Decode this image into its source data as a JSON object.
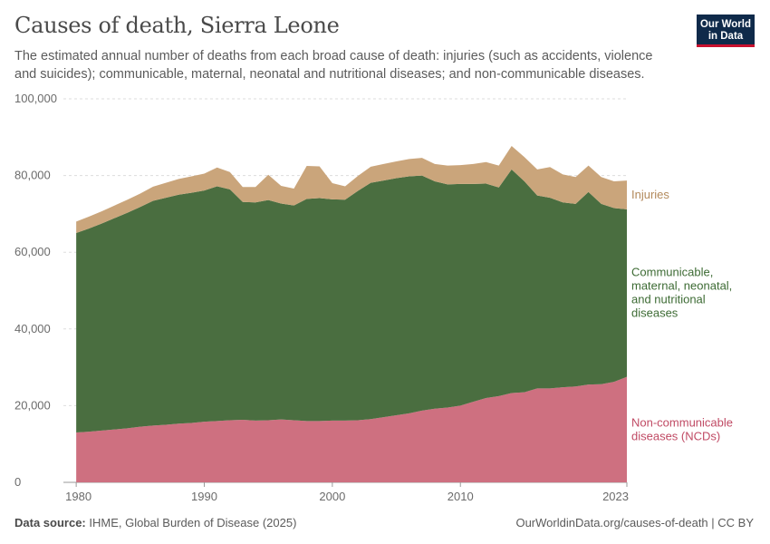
{
  "header": {
    "title": "Causes of death, Sierra Leone",
    "subtitle": "The estimated annual number of deaths from each broad cause of death: injuries (such as accidents, violence and suicides); communicable, maternal, neonatal and nutritional diseases; and non-communicable diseases."
  },
  "logo": {
    "line1": "Our World",
    "line2": "in Data"
  },
  "footer": {
    "source_label": "Data source:",
    "source_text": "IHME, Global Burden of Disease (2025)",
    "url": "OurWorldinData.org/causes-of-death | CC BY"
  },
  "chart_data": {
    "type": "area",
    "stacked": true,
    "title": "Causes of death, Sierra Leone",
    "x": [
      1980,
      1981,
      1982,
      1983,
      1984,
      1985,
      1986,
      1987,
      1988,
      1989,
      1990,
      1991,
      1992,
      1993,
      1994,
      1995,
      1996,
      1997,
      1998,
      1999,
      2000,
      2001,
      2002,
      2003,
      2004,
      2005,
      2006,
      2007,
      2008,
      2009,
      2010,
      2011,
      2012,
      2013,
      2014,
      2015,
      2016,
      2017,
      2018,
      2019,
      2020,
      2021,
      2022,
      2023
    ],
    "xlim": [
      1979,
      2023
    ],
    "ylim": [
      0,
      100000
    ],
    "x_ticks": [
      1980,
      1990,
      2000,
      2010,
      2023
    ],
    "x_tick_labels": [
      "1980",
      "1990",
      "2000",
      "2010",
      "2023"
    ],
    "y_ticks": [
      0,
      20000,
      40000,
      60000,
      80000,
      100000
    ],
    "y_tick_labels": [
      "0",
      "20,000",
      "40,000",
      "60,000",
      "80,000",
      "100,000"
    ],
    "grid": "horizontal-dashed",
    "series": [
      {
        "name": "Non-communicable diseases (NCDs)",
        "label_lines": [
          "Non-communicable",
          "diseases (NCDs)"
        ],
        "color": "#ce7080",
        "label_color": "#c04a64",
        "values": [
          13000,
          13200,
          13500,
          13800,
          14100,
          14500,
          14800,
          15000,
          15300,
          15500,
          15800,
          16000,
          16200,
          16300,
          16100,
          16200,
          16400,
          16200,
          16000,
          16000,
          16100,
          16100,
          16200,
          16500,
          17000,
          17500,
          18000,
          18700,
          19200,
          19500,
          20000,
          21000,
          22000,
          22500,
          23300,
          23500,
          24500,
          24500,
          24800,
          25000,
          25500,
          25600,
          26200,
          27500
        ]
      },
      {
        "name": "Communicable, maternal, neonatal, and nutritional diseases",
        "label_lines": [
          "Communicable,",
          "maternal, neonatal,",
          "and nutritional",
          "diseases"
        ],
        "color": "#4a6e40",
        "label_color": "#3d6b34",
        "values": [
          52000,
          53000,
          54000,
          55100,
          56200,
          57300,
          58600,
          59200,
          59700,
          60000,
          60300,
          61200,
          60200,
          56800,
          56900,
          57400,
          56300,
          56000,
          57900,
          58100,
          57700,
          57600,
          59800,
          61600,
          61700,
          61800,
          61800,
          61300,
          59300,
          58200,
          57800,
          56800,
          55900,
          54400,
          58300,
          55000,
          50300,
          49700,
          48200,
          47600,
          50200,
          47000,
          45300,
          43700
        ]
      },
      {
        "name": "Injuries",
        "label_lines": [
          "Injuries"
        ],
        "color": "#caa57b",
        "label_color": "#b38a5c",
        "values": [
          3000,
          3100,
          3200,
          3300,
          3400,
          3500,
          3700,
          3900,
          4100,
          4300,
          4400,
          4900,
          4500,
          3900,
          4000,
          6600,
          4600,
          4400,
          8600,
          8300,
          4200,
          3500,
          3900,
          4200,
          4300,
          4400,
          4500,
          4600,
          4500,
          4900,
          4900,
          5200,
          5600,
          5700,
          6100,
          6300,
          6800,
          8000,
          7300,
          7000,
          6900,
          7000,
          7000,
          7500
        ]
      }
    ]
  }
}
